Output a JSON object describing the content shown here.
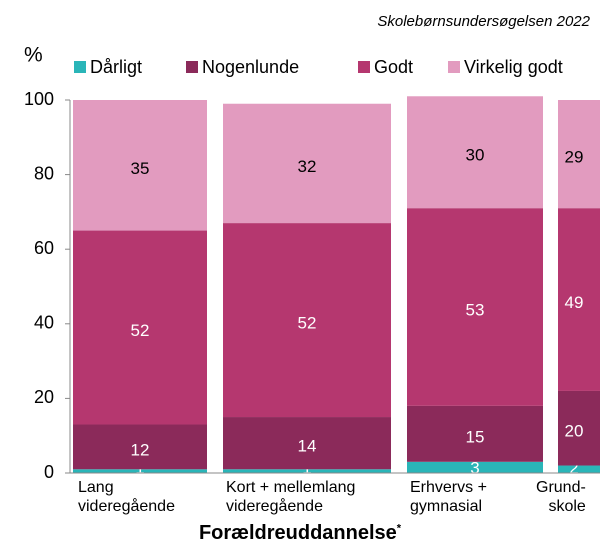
{
  "chart_data": {
    "type": "stacked-bar",
    "source": "Skolebørnsundersøgelsen 2022",
    "ylabel": "%",
    "xlabel": "Forældreuddannelse",
    "xlabel_note": "*",
    "categories": [
      "Lang\nvideregående",
      "Kort + mellemlang\nvideregående",
      "Erhvervs +\ngymnasial",
      "Grund-\nskole"
    ],
    "series": [
      {
        "name": "Dårligt",
        "color": "#2ab5b8",
        "values": [
          1,
          1,
          3,
          2
        ]
      },
      {
        "name": "Nogenlunde",
        "color": "#8b2a5a",
        "values": [
          12,
          14,
          15,
          20
        ]
      },
      {
        "name": "Godt",
        "color": "#b5376f",
        "values": [
          52,
          52,
          53,
          49
        ]
      },
      {
        "name": "Virkelig godt",
        "color": "#e29bbf",
        "values": [
          35,
          32,
          30,
          29
        ]
      }
    ],
    "ylim": [
      0,
      100
    ],
    "yticks": [
      0,
      20,
      40,
      60,
      80,
      100
    ]
  }
}
